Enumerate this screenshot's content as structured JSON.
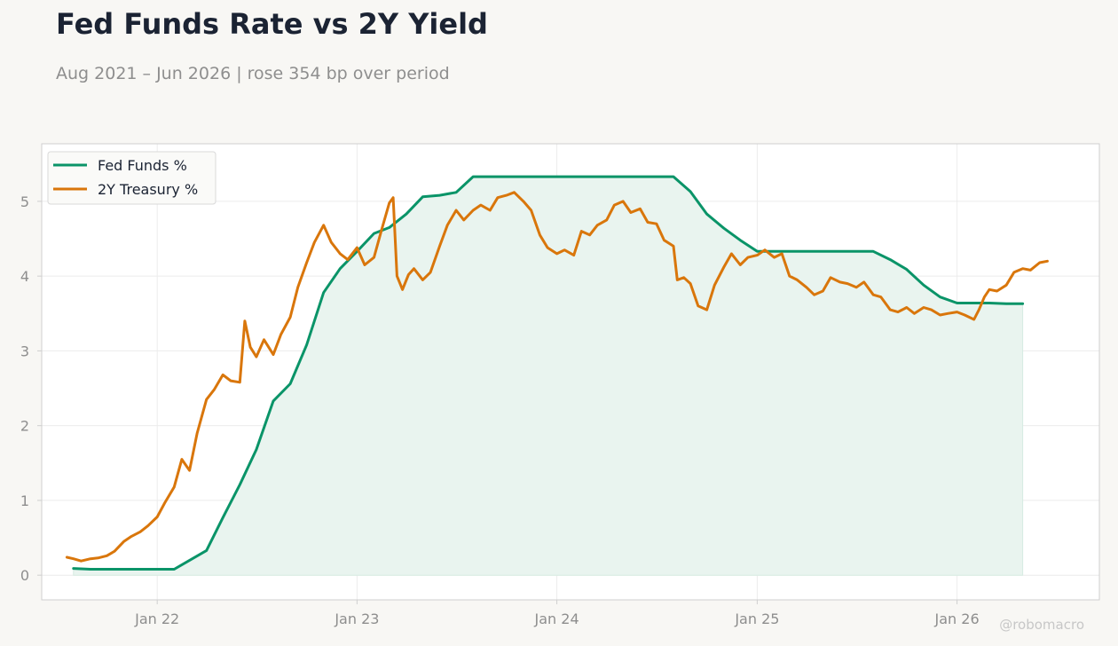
{
  "title": "Fed Funds Rate vs 2Y Yield",
  "subtitle": "Aug 2021 – Jun 2026 | rose 354 bp over period",
  "watermark": "@robomacro",
  "colors": {
    "fed_funds": "#0a9468",
    "treasury_2y": "#d9760b",
    "fill": "#e9f4ef",
    "background": "#f8f7f4",
    "plot_bg": "#ffffff",
    "grid": "#ececec",
    "axes": "#cfcfcf"
  },
  "chart_data": {
    "type": "line",
    "title": "Fed Funds Rate vs 2Y Yield",
    "subtitle": "Aug 2021 – Jun 2026 | rose 354 bp over period",
    "xlabel": "",
    "ylabel": "",
    "xlim": [
      "2021-06-04",
      "2026-09-18"
    ],
    "ylim": [
      -0.33,
      5.77
    ],
    "grid": true,
    "legend_position": "top-left",
    "x_ticks": [
      {
        "date": "2022-01-01",
        "label": "Jan 22"
      },
      {
        "date": "2023-01-01",
        "label": "Jan 23"
      },
      {
        "date": "2024-01-01",
        "label": "Jan 24"
      },
      {
        "date": "2025-01-01",
        "label": "Jan 25"
      },
      {
        "date": "2026-01-01",
        "label": "Jan 26"
      }
    ],
    "y_ticks": [
      0,
      1,
      2,
      3,
      4,
      5
    ],
    "series": [
      {
        "name": "Fed Funds %",
        "color": "#0a9468",
        "fill_below": true,
        "points": [
          [
            "2021-08-01",
            0.09
          ],
          [
            "2021-09-01",
            0.08
          ],
          [
            "2021-12-01",
            0.08
          ],
          [
            "2022-02-01",
            0.08
          ],
          [
            "2022-04-01",
            0.33
          ],
          [
            "2022-05-01",
            0.77
          ],
          [
            "2022-06-01",
            1.21
          ],
          [
            "2022-07-01",
            1.68
          ],
          [
            "2022-08-01",
            2.33
          ],
          [
            "2022-09-01",
            2.56
          ],
          [
            "2022-10-01",
            3.08
          ],
          [
            "2022-11-01",
            3.78
          ],
          [
            "2022-12-01",
            4.1
          ],
          [
            "2023-01-01",
            4.33
          ],
          [
            "2023-02-01",
            4.57
          ],
          [
            "2023-03-01",
            4.65
          ],
          [
            "2023-04-01",
            4.83
          ],
          [
            "2023-05-01",
            5.06
          ],
          [
            "2023-06-01",
            5.08
          ],
          [
            "2023-07-01",
            5.12
          ],
          [
            "2023-08-01",
            5.33
          ],
          [
            "2024-08-01",
            5.33
          ],
          [
            "2024-09-01",
            5.13
          ],
          [
            "2024-10-01",
            4.83
          ],
          [
            "2024-11-01",
            4.64
          ],
          [
            "2024-12-01",
            4.48
          ],
          [
            "2025-01-01",
            4.33
          ],
          [
            "2025-08-01",
            4.33
          ],
          [
            "2025-09-01",
            4.22
          ],
          [
            "2025-10-01",
            4.09
          ],
          [
            "2025-11-01",
            3.88
          ],
          [
            "2025-12-01",
            3.72
          ],
          [
            "2026-01-01",
            3.64
          ],
          [
            "2026-03-01",
            3.64
          ],
          [
            "2026-04-01",
            3.63
          ],
          [
            "2026-05-01",
            3.63
          ]
        ]
      },
      {
        "name": "2Y Treasury %",
        "color": "#d9760b",
        "fill_below": false,
        "points": [
          [
            "2021-07-20",
            0.24
          ],
          [
            "2021-08-01",
            0.22
          ],
          [
            "2021-08-15",
            0.19
          ],
          [
            "2021-09-01",
            0.22
          ],
          [
            "2021-09-15",
            0.23
          ],
          [
            "2021-10-01",
            0.26
          ],
          [
            "2021-10-15",
            0.32
          ],
          [
            "2021-11-01",
            0.45
          ],
          [
            "2021-11-15",
            0.52
          ],
          [
            "2021-12-01",
            0.58
          ],
          [
            "2021-12-15",
            0.66
          ],
          [
            "2022-01-01",
            0.78
          ],
          [
            "2022-01-15",
            0.97
          ],
          [
            "2022-02-01",
            1.18
          ],
          [
            "2022-02-15",
            1.55
          ],
          [
            "2022-03-01",
            1.4
          ],
          [
            "2022-03-15",
            1.9
          ],
          [
            "2022-04-01",
            2.35
          ],
          [
            "2022-04-15",
            2.48
          ],
          [
            "2022-05-01",
            2.68
          ],
          [
            "2022-05-15",
            2.6
          ],
          [
            "2022-06-01",
            2.58
          ],
          [
            "2022-06-10",
            3.4
          ],
          [
            "2022-06-20",
            3.05
          ],
          [
            "2022-07-01",
            2.92
          ],
          [
            "2022-07-15",
            3.15
          ],
          [
            "2022-08-01",
            2.95
          ],
          [
            "2022-08-15",
            3.22
          ],
          [
            "2022-09-01",
            3.45
          ],
          [
            "2022-09-15",
            3.85
          ],
          [
            "2022-10-01",
            4.18
          ],
          [
            "2022-10-15",
            4.45
          ],
          [
            "2022-11-01",
            4.68
          ],
          [
            "2022-11-15",
            4.45
          ],
          [
            "2022-12-01",
            4.3
          ],
          [
            "2022-12-15",
            4.22
          ],
          [
            "2023-01-01",
            4.38
          ],
          [
            "2023-01-15",
            4.15
          ],
          [
            "2023-02-01",
            4.25
          ],
          [
            "2023-02-15",
            4.62
          ],
          [
            "2023-03-01",
            4.98
          ],
          [
            "2023-03-08",
            5.05
          ],
          [
            "2023-03-15",
            4.0
          ],
          [
            "2023-03-25",
            3.82
          ],
          [
            "2023-04-05",
            4.02
          ],
          [
            "2023-04-15",
            4.1
          ],
          [
            "2023-05-01",
            3.95
          ],
          [
            "2023-05-15",
            4.05
          ],
          [
            "2023-06-01",
            4.4
          ],
          [
            "2023-06-15",
            4.68
          ],
          [
            "2023-07-01",
            4.88
          ],
          [
            "2023-07-15",
            4.75
          ],
          [
            "2023-08-01",
            4.88
          ],
          [
            "2023-08-15",
            4.95
          ],
          [
            "2023-09-01",
            4.88
          ],
          [
            "2023-09-15",
            5.05
          ],
          [
            "2023-10-01",
            5.08
          ],
          [
            "2023-10-15",
            5.12
          ],
          [
            "2023-11-01",
            5.0
          ],
          [
            "2023-11-15",
            4.88
          ],
          [
            "2023-12-01",
            4.55
          ],
          [
            "2023-12-15",
            4.38
          ],
          [
            "2024-01-01",
            4.3
          ],
          [
            "2024-01-15",
            4.35
          ],
          [
            "2024-02-01",
            4.28
          ],
          [
            "2024-02-15",
            4.6
          ],
          [
            "2024-03-01",
            4.55
          ],
          [
            "2024-03-15",
            4.68
          ],
          [
            "2024-04-01",
            4.75
          ],
          [
            "2024-04-15",
            4.95
          ],
          [
            "2024-05-01",
            5.0
          ],
          [
            "2024-05-15",
            4.85
          ],
          [
            "2024-06-01",
            4.9
          ],
          [
            "2024-06-15",
            4.72
          ],
          [
            "2024-07-01",
            4.7
          ],
          [
            "2024-07-15",
            4.48
          ],
          [
            "2024-08-01",
            4.4
          ],
          [
            "2024-08-08",
            3.95
          ],
          [
            "2024-08-20",
            3.98
          ],
          [
            "2024-09-01",
            3.9
          ],
          [
            "2024-09-15",
            3.6
          ],
          [
            "2024-10-01",
            3.55
          ],
          [
            "2024-10-15",
            3.88
          ],
          [
            "2024-11-01",
            4.12
          ],
          [
            "2024-11-15",
            4.3
          ],
          [
            "2024-12-01",
            4.15
          ],
          [
            "2024-12-15",
            4.25
          ],
          [
            "2025-01-01",
            4.28
          ],
          [
            "2025-01-15",
            4.35
          ],
          [
            "2025-02-01",
            4.25
          ],
          [
            "2025-02-15",
            4.3
          ],
          [
            "2025-03-01",
            4.0
          ],
          [
            "2025-03-15",
            3.95
          ],
          [
            "2025-04-01",
            3.85
          ],
          [
            "2025-04-15",
            3.75
          ],
          [
            "2025-05-01",
            3.8
          ],
          [
            "2025-05-15",
            3.98
          ],
          [
            "2025-06-01",
            3.92
          ],
          [
            "2025-06-15",
            3.9
          ],
          [
            "2025-07-01",
            3.85
          ],
          [
            "2025-07-15",
            3.92
          ],
          [
            "2025-08-01",
            3.75
          ],
          [
            "2025-08-15",
            3.72
          ],
          [
            "2025-09-01",
            3.55
          ],
          [
            "2025-09-15",
            3.52
          ],
          [
            "2025-10-01",
            3.58
          ],
          [
            "2025-10-15",
            3.5
          ],
          [
            "2025-11-01",
            3.58
          ],
          [
            "2025-11-15",
            3.55
          ],
          [
            "2025-12-01",
            3.48
          ],
          [
            "2025-12-15",
            3.5
          ],
          [
            "2026-01-01",
            3.52
          ],
          [
            "2026-01-15",
            3.48
          ],
          [
            "2026-02-01",
            3.42
          ],
          [
            "2026-02-10",
            3.55
          ],
          [
            "2026-02-20",
            3.72
          ],
          [
            "2026-03-01",
            3.82
          ],
          [
            "2026-03-15",
            3.8
          ],
          [
            "2026-04-01",
            3.88
          ],
          [
            "2026-04-15",
            4.05
          ],
          [
            "2026-05-01",
            4.1
          ],
          [
            "2026-05-15",
            4.08
          ],
          [
            "2026-06-01",
            4.18
          ],
          [
            "2026-06-15",
            4.2
          ]
        ]
      }
    ]
  }
}
